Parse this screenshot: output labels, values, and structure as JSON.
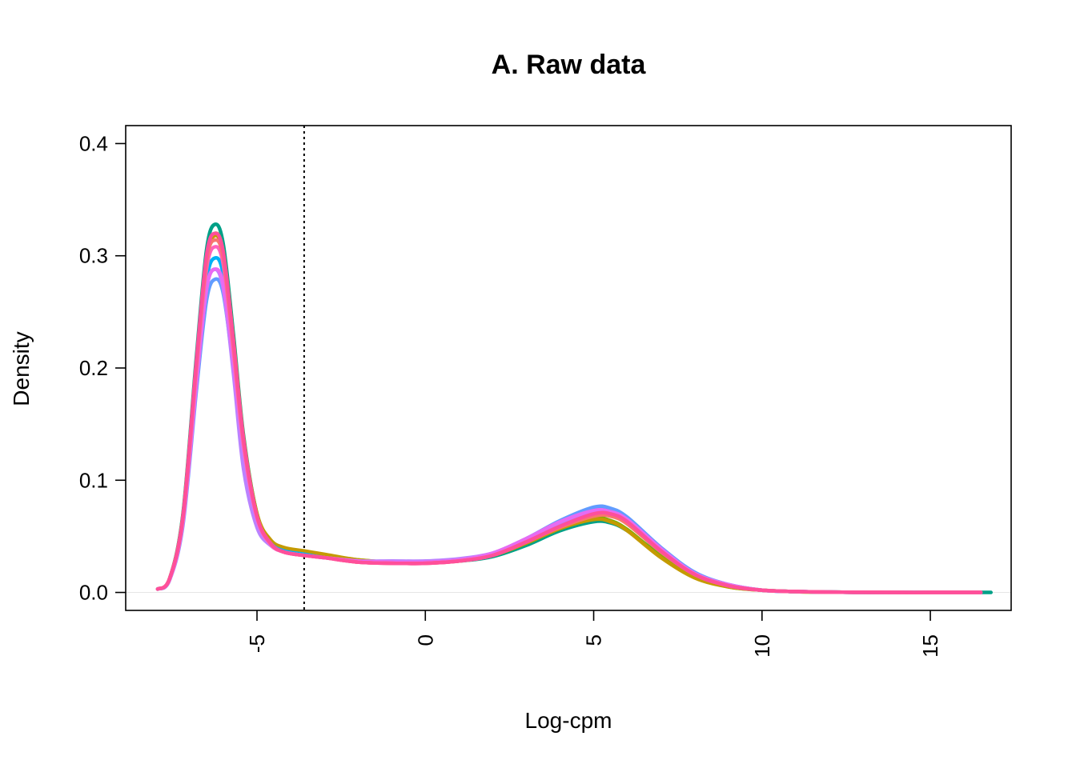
{
  "chart_data": {
    "type": "line",
    "title": "A. Raw data",
    "xlabel": "Log-cpm",
    "ylabel": "Density",
    "xlim": [
      -8.9,
      17.4
    ],
    "ylim": [
      -0.016,
      0.416
    ],
    "xticks": [
      -5,
      0,
      5,
      10,
      15
    ],
    "xtick_labels": [
      "-5",
      "0",
      "5",
      "10",
      "15"
    ],
    "yticks": [
      0.0,
      0.1,
      0.2,
      0.3,
      0.4
    ],
    "ytick_labels": [
      "0.0",
      "0.1",
      "0.2",
      "0.3",
      "0.4"
    ],
    "xtick_rotation": "vertical",
    "grid": false,
    "legend": "none",
    "cutoff_line": {
      "x": -3.6,
      "style": "dotted"
    },
    "baseline": {
      "y": 0.0,
      "color": "#e6e6e6"
    },
    "series": [
      {
        "color": "#00A087",
        "x": [
          -7.95,
          -7.6,
          -7.2,
          -6.8,
          -6.5,
          -6.25,
          -6.0,
          -5.7,
          -5.4,
          -5.0,
          -4.6,
          -4.2,
          -3.6,
          -3.0,
          -2.0,
          -1.0,
          0.0,
          1.0,
          2.0,
          3.0,
          4.0,
          5.0,
          5.5,
          6.0,
          7.0,
          8.0,
          9.0,
          10.0,
          11.0,
          12.0,
          13.0,
          14.0,
          15.0,
          16.0,
          16.8
        ],
        "y": [
          0.003,
          0.012,
          0.07,
          0.21,
          0.305,
          0.328,
          0.31,
          0.23,
          0.14,
          0.07,
          0.045,
          0.038,
          0.035,
          0.032,
          0.028,
          0.027,
          0.027,
          0.028,
          0.032,
          0.042,
          0.055,
          0.063,
          0.062,
          0.055,
          0.033,
          0.015,
          0.006,
          0.002,
          0.0008,
          0.0003,
          0.0001,
          0.0,
          0.0,
          0.0,
          0.0
        ]
      },
      {
        "color": "#7CAE00",
        "x": [
          -7.95,
          -7.6,
          -7.2,
          -6.8,
          -6.5,
          -6.25,
          -6.0,
          -5.7,
          -5.4,
          -5.0,
          -4.6,
          -4.2,
          -3.6,
          -3.0,
          -2.0,
          -1.0,
          0.0,
          1.0,
          2.0,
          3.0,
          4.0,
          5.0,
          5.5,
          6.0,
          7.0,
          8.0,
          9.0,
          10.0,
          11.0,
          12.0,
          13.0,
          14.0,
          15.0,
          16.0,
          16.5
        ],
        "y": [
          0.003,
          0.012,
          0.068,
          0.205,
          0.298,
          0.32,
          0.303,
          0.225,
          0.138,
          0.07,
          0.046,
          0.039,
          0.036,
          0.033,
          0.029,
          0.027,
          0.027,
          0.028,
          0.033,
          0.044,
          0.057,
          0.066,
          0.064,
          0.056,
          0.032,
          0.014,
          0.005,
          0.002,
          0.0007,
          0.0003,
          0.0001,
          0.0,
          0.0,
          0.0,
          0.0
        ]
      },
      {
        "color": "#C49A00",
        "x": [
          -7.95,
          -7.6,
          -7.2,
          -6.8,
          -6.5,
          -6.25,
          -6.0,
          -5.7,
          -5.4,
          -5.0,
          -4.6,
          -4.2,
          -3.6,
          -3.0,
          -2.0,
          -1.0,
          0.0,
          1.0,
          2.0,
          3.0,
          4.0,
          5.0,
          5.5,
          6.0,
          7.0,
          8.0,
          9.0,
          10.0,
          11.0,
          12.0,
          13.0,
          14.0,
          15.0,
          16.0,
          16.5
        ],
        "y": [
          0.003,
          0.012,
          0.068,
          0.204,
          0.296,
          0.318,
          0.301,
          0.224,
          0.137,
          0.07,
          0.047,
          0.04,
          0.037,
          0.034,
          0.029,
          0.027,
          0.027,
          0.028,
          0.033,
          0.044,
          0.057,
          0.065,
          0.063,
          0.055,
          0.031,
          0.013,
          0.005,
          0.002,
          0.0007,
          0.0003,
          0.0001,
          0.0,
          0.0,
          0.0,
          0.0
        ]
      },
      {
        "color": "#619CFF",
        "x": [
          -7.95,
          -7.6,
          -7.2,
          -6.8,
          -6.5,
          -6.25,
          -6.0,
          -5.7,
          -5.4,
          -5.0,
          -4.6,
          -4.2,
          -3.6,
          -3.0,
          -2.0,
          -1.0,
          0.0,
          1.0,
          2.0,
          3.0,
          4.0,
          5.0,
          5.5,
          6.0,
          7.0,
          8.0,
          9.0,
          10.0,
          11.0,
          12.0,
          13.0,
          14.0,
          15.0,
          16.0,
          16.5
        ],
        "y": [
          0.003,
          0.011,
          0.06,
          0.18,
          0.26,
          0.279,
          0.266,
          0.2,
          0.125,
          0.065,
          0.044,
          0.037,
          0.034,
          0.031,
          0.028,
          0.027,
          0.027,
          0.029,
          0.035,
          0.048,
          0.064,
          0.076,
          0.075,
          0.067,
          0.04,
          0.018,
          0.007,
          0.002,
          0.0008,
          0.0003,
          0.0001,
          0.0,
          0.0,
          0.0,
          0.0
        ]
      },
      {
        "color": "#00B0F6",
        "x": [
          -7.95,
          -7.6,
          -7.2,
          -6.8,
          -6.5,
          -6.25,
          -6.0,
          -5.7,
          -5.4,
          -5.0,
          -4.6,
          -4.2,
          -3.6,
          -3.0,
          -2.0,
          -1.0,
          0.0,
          1.0,
          2.0,
          3.0,
          4.0,
          5.0,
          5.5,
          6.0,
          7.0,
          8.0,
          9.0,
          10.0,
          11.0,
          12.0,
          13.0,
          14.0,
          15.0,
          16.0,
          16.5
        ],
        "y": [
          0.003,
          0.011,
          0.064,
          0.19,
          0.278,
          0.298,
          0.283,
          0.21,
          0.13,
          0.066,
          0.044,
          0.037,
          0.034,
          0.031,
          0.028,
          0.027,
          0.027,
          0.029,
          0.034,
          0.047,
          0.062,
          0.073,
          0.072,
          0.064,
          0.038,
          0.017,
          0.007,
          0.002,
          0.0008,
          0.0003,
          0.0001,
          0.0,
          0.0,
          0.0,
          0.0
        ]
      },
      {
        "color": "#B983FF",
        "x": [
          -7.95,
          -7.6,
          -7.2,
          -6.8,
          -6.5,
          -6.25,
          -6.0,
          -5.7,
          -5.4,
          -5.0,
          -4.6,
          -4.2,
          -3.6,
          -3.0,
          -2.0,
          -1.0,
          0.0,
          1.0,
          2.0,
          3.0,
          4.0,
          5.0,
          5.5,
          6.0,
          7.0,
          8.0,
          9.0,
          10.0,
          11.0,
          12.0,
          13.0,
          14.0,
          15.0,
          16.0,
          16.5
        ],
        "y": [
          0.003,
          0.011,
          0.063,
          0.186,
          0.27,
          0.288,
          0.27,
          0.195,
          0.11,
          0.058,
          0.042,
          0.036,
          0.033,
          0.031,
          0.028,
          0.028,
          0.028,
          0.03,
          0.035,
          0.047,
          0.062,
          0.072,
          0.071,
          0.063,
          0.038,
          0.017,
          0.007,
          0.002,
          0.0008,
          0.0003,
          0.0001,
          0.0,
          0.0,
          0.0,
          0.0
        ]
      },
      {
        "color": "#E76BF3",
        "x": [
          -7.95,
          -7.6,
          -7.2,
          -6.8,
          -6.5,
          -6.25,
          -6.0,
          -5.7,
          -5.4,
          -5.0,
          -4.6,
          -4.2,
          -3.6,
          -3.0,
          -2.0,
          -1.0,
          0.0,
          1.0,
          2.0,
          3.0,
          4.0,
          5.0,
          5.5,
          6.0,
          7.0,
          8.0,
          9.0,
          10.0,
          11.0,
          12.0,
          13.0,
          14.0,
          15.0,
          16.0,
          16.5
        ],
        "y": [
          0.003,
          0.011,
          0.062,
          0.186,
          0.27,
          0.288,
          0.274,
          0.205,
          0.127,
          0.065,
          0.043,
          0.036,
          0.033,
          0.031,
          0.028,
          0.027,
          0.027,
          0.029,
          0.035,
          0.048,
          0.063,
          0.073,
          0.072,
          0.065,
          0.039,
          0.017,
          0.007,
          0.002,
          0.0008,
          0.0003,
          0.0001,
          0.0,
          0.0,
          0.0,
          0.0
        ]
      },
      {
        "color": "#FF62BC",
        "x": [
          -7.95,
          -7.6,
          -7.2,
          -6.8,
          -6.5,
          -6.25,
          -6.0,
          -5.7,
          -5.4,
          -5.0,
          -4.6,
          -4.2,
          -3.6,
          -3.0,
          -2.0,
          -1.0,
          0.0,
          1.0,
          2.0,
          3.0,
          4.0,
          5.0,
          5.5,
          6.0,
          7.0,
          8.0,
          9.0,
          10.0,
          11.0,
          12.0,
          13.0,
          14.0,
          15.0,
          16.0,
          16.5
        ],
        "y": [
          0.003,
          0.012,
          0.066,
          0.198,
          0.288,
          0.308,
          0.292,
          0.215,
          0.132,
          0.067,
          0.043,
          0.036,
          0.033,
          0.031,
          0.027,
          0.026,
          0.026,
          0.028,
          0.033,
          0.045,
          0.059,
          0.069,
          0.069,
          0.062,
          0.037,
          0.016,
          0.006,
          0.002,
          0.0008,
          0.0003,
          0.0001,
          0.0,
          0.0,
          0.0,
          0.0
        ]
      },
      {
        "color": "#F8766D",
        "x": [
          -7.95,
          -7.6,
          -7.2,
          -6.8,
          -6.5,
          -6.25,
          -6.0,
          -5.7,
          -5.4,
          -5.0,
          -4.6,
          -4.2,
          -3.6,
          -3.0,
          -2.0,
          -1.0,
          0.0,
          1.0,
          2.0,
          3.0,
          4.0,
          5.0,
          5.5,
          6.0,
          7.0,
          8.0,
          9.0,
          10.0,
          11.0,
          12.0,
          13.0,
          14.0,
          15.0,
          16.0,
          16.5
        ],
        "y": [
          0.003,
          0.012,
          0.067,
          0.203,
          0.295,
          0.314,
          0.298,
          0.22,
          0.135,
          0.068,
          0.044,
          0.036,
          0.033,
          0.031,
          0.027,
          0.026,
          0.026,
          0.028,
          0.033,
          0.045,
          0.058,
          0.068,
          0.068,
          0.061,
          0.036,
          0.016,
          0.006,
          0.002,
          0.0008,
          0.0003,
          0.0001,
          0.0,
          0.0,
          0.0,
          0.0
        ]
      },
      {
        "color": "#FF4F9A",
        "x": [
          -7.95,
          -7.6,
          -7.2,
          -6.8,
          -6.5,
          -6.25,
          -6.0,
          -5.7,
          -5.4,
          -5.0,
          -4.6,
          -4.2,
          -3.6,
          -3.0,
          -2.0,
          -1.0,
          0.0,
          1.0,
          2.0,
          3.0,
          4.0,
          5.0,
          5.5,
          6.0,
          7.0,
          8.0,
          9.0,
          10.0,
          11.0,
          12.0,
          13.0,
          14.0,
          15.0,
          16.0,
          16.5
        ],
        "y": [
          0.003,
          0.012,
          0.068,
          0.206,
          0.3,
          0.32,
          0.303,
          0.224,
          0.137,
          0.068,
          0.044,
          0.036,
          0.033,
          0.031,
          0.027,
          0.026,
          0.026,
          0.028,
          0.033,
          0.045,
          0.059,
          0.07,
          0.07,
          0.063,
          0.037,
          0.016,
          0.006,
          0.002,
          0.0008,
          0.0003,
          0.0001,
          0.0,
          0.0,
          0.0,
          0.0
        ]
      }
    ]
  }
}
